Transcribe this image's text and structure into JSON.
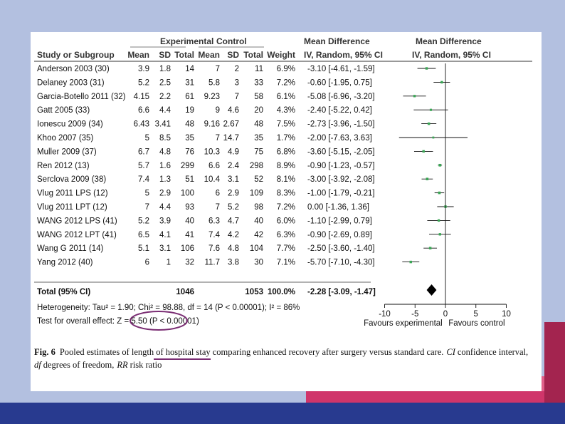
{
  "chart_data": {
    "type": "forest",
    "headers": {
      "group_experimental": "Experimental",
      "group_control": "Control",
      "group_md_left": "Mean Difference",
      "group_md_right": "Mean Difference",
      "study": "Study or Subgroup",
      "mean": "Mean",
      "sd": "SD",
      "total": "Total",
      "mean2": "Mean",
      "sd2": "SD",
      "total2": "Total",
      "weight": "Weight",
      "ci": "IV, Random, 95% CI",
      "ci_plot": "IV, Random, 95% CI"
    },
    "studies": [
      {
        "name": "Anderson 2003 (30)",
        "e_mean": "3.9",
        "e_sd": "1.8",
        "e_total": "14",
        "c_mean": "7",
        "c_sd": "2",
        "c_total": "11",
        "weight": "6.9%",
        "ci": "-3.10 [-4.61, -1.59]",
        "md": -3.1,
        "lo": -4.61,
        "hi": -1.59
      },
      {
        "name": "Delaney 2003 (31)",
        "e_mean": "5.2",
        "e_sd": "2.5",
        "e_total": "31",
        "c_mean": "5.8",
        "c_sd": "3",
        "c_total": "33",
        "weight": "7.2%",
        "ci": "-0.60 [-1.95, 0.75]",
        "md": -0.6,
        "lo": -1.95,
        "hi": 0.75
      },
      {
        "name": "Garcia-Botello 2011 (32)",
        "e_mean": "4.15",
        "e_sd": "2.2",
        "e_total": "61",
        "c_mean": "9.23",
        "c_sd": "7",
        "c_total": "58",
        "weight": "6.1%",
        "ci": "-5.08 [-6.96, -3.20]",
        "md": -5.08,
        "lo": -6.96,
        "hi": -3.2
      },
      {
        "name": "Gatt 2005 (33)",
        "e_mean": "6.6",
        "e_sd": "4.4",
        "e_total": "19",
        "c_mean": "9",
        "c_sd": "4.6",
        "c_total": "20",
        "weight": "4.3%",
        "ci": "-2.40 [-5.22, 0.42]",
        "md": -2.4,
        "lo": -5.22,
        "hi": 0.42
      },
      {
        "name": "Ionescu 2009 (34)",
        "e_mean": "6.43",
        "e_sd": "3.41",
        "e_total": "48",
        "c_mean": "9.16",
        "c_sd": "2.67",
        "c_total": "48",
        "weight": "7.5%",
        "ci": "-2.73 [-3.96, -1.50]",
        "md": -2.73,
        "lo": -3.96,
        "hi": -1.5
      },
      {
        "name": "Khoo 2007 (35)",
        "e_mean": "5",
        "e_sd": "8.5",
        "e_total": "35",
        "c_mean": "7",
        "c_sd": "14.7",
        "c_total": "35",
        "weight": "1.7%",
        "ci": "-2.00 [-7.63, 3.63]",
        "md": -2.0,
        "lo": -7.63,
        "hi": 3.63
      },
      {
        "name": "Muller 2009 (37)",
        "e_mean": "6.7",
        "e_sd": "4.8",
        "e_total": "76",
        "c_mean": "10.3",
        "c_sd": "4.9",
        "c_total": "75",
        "weight": "6.8%",
        "ci": "-3.60 [-5.15, -2.05]",
        "md": -3.6,
        "lo": -5.15,
        "hi": -2.05
      },
      {
        "name": "Ren 2012 (13)",
        "e_mean": "5.7",
        "e_sd": "1.6",
        "e_total": "299",
        "c_mean": "6.6",
        "c_sd": "2.4",
        "c_total": "298",
        "weight": "8.9%",
        "ci": "-0.90 [-1.23, -0.57]",
        "md": -0.9,
        "lo": -1.23,
        "hi": -0.57
      },
      {
        "name": "Serclova 2009 (38)",
        "e_mean": "7.4",
        "e_sd": "1.3",
        "e_total": "51",
        "c_mean": "10.4",
        "c_sd": "3.1",
        "c_total": "52",
        "weight": "8.1%",
        "ci": "-3.00 [-3.92, -2.08]",
        "md": -3.0,
        "lo": -3.92,
        "hi": -2.08
      },
      {
        "name": "Vlug 2011 LPS (12)",
        "e_mean": "5",
        "e_sd": "2.9",
        "e_total": "100",
        "c_mean": "6",
        "c_sd": "2.9",
        "c_total": "109",
        "weight": "8.3%",
        "ci": "-1.00 [-1.79, -0.21]",
        "md": -1.0,
        "lo": -1.79,
        "hi": -0.21
      },
      {
        "name": "Vlug 2011 LPT (12)",
        "e_mean": "7",
        "e_sd": "4.4",
        "e_total": "93",
        "c_mean": "7",
        "c_sd": "5.2",
        "c_total": "98",
        "weight": "7.2%",
        "ci": "0.00 [-1.36, 1.36]",
        "md": 0.0,
        "lo": -1.36,
        "hi": 1.36
      },
      {
        "name": "WANG 2012 LPS (41)",
        "e_mean": "5.2",
        "e_sd": "3.9",
        "e_total": "40",
        "c_mean": "6.3",
        "c_sd": "4.7",
        "c_total": "40",
        "weight": "6.0%",
        "ci": "-1.10 [-2.99, 0.79]",
        "md": -1.1,
        "lo": -2.99,
        "hi": 0.79
      },
      {
        "name": "WANG 2012 LPT (41)",
        "e_mean": "6.5",
        "e_sd": "4.1",
        "e_total": "41",
        "c_mean": "7.4",
        "c_sd": "4.2",
        "c_total": "42",
        "weight": "6.3%",
        "ci": "-0.90 [-2.69, 0.89]",
        "md": -0.9,
        "lo": -2.69,
        "hi": 0.89
      },
      {
        "name": "Wang G 2011 (14)",
        "e_mean": "5.1",
        "e_sd": "3.1",
        "e_total": "106",
        "c_mean": "7.6",
        "c_sd": "4.8",
        "c_total": "104",
        "weight": "7.7%",
        "ci": "-2.50 [-3.60, -1.40]",
        "md": -2.5,
        "lo": -3.6,
        "hi": -1.4
      },
      {
        "name": "Yang 2012 (40)",
        "e_mean": "6",
        "e_sd": "1",
        "e_total": "32",
        "c_mean": "11.7",
        "c_sd": "3.8",
        "c_total": "30",
        "weight": "7.1%",
        "ci": "-5.70 [-7.10, -4.30]",
        "md": -5.7,
        "lo": -7.1,
        "hi": -4.3
      }
    ],
    "total": {
      "label": "Total (95% CI)",
      "e_total": "1046",
      "c_total": "1053",
      "weight": "100.0%",
      "ci": "-2.28 [-3.09, -1.47]",
      "md": -2.28,
      "lo": -3.09,
      "hi": -1.47
    },
    "heterogeneity": "Heterogeneity: Tau² = 1.90; Chi² = 98.88, df = 14 (P < 0.00001); I² = 86%",
    "overall_effect": "Test for overall effect: Z = 5.50 (P < 0.00001)",
    "axis": {
      "min": -10,
      "max": 10,
      "ticks": [
        "-10",
        "-5",
        "0",
        "5",
        "10"
      ]
    },
    "favours_left": "Favours experimental",
    "favours_right": "Favours control",
    "caption": {
      "fig_label": "Fig. 6",
      "line1": "Pooled estimates of length of hospital stay comparing enhanced recovery after surgery versus standard care.",
      "ci_abbr": "CI",
      "ci_def": "confidence interval,",
      "df_abbr": "df",
      "df_def": "degrees of freedom,",
      "rr_abbr": "RR",
      "rr_def": "risk ratio"
    }
  },
  "colors": {
    "marker": "#3aa655",
    "annotation": "#7a2d73",
    "panel": "#ffffff",
    "background": "#b3c0e0"
  }
}
